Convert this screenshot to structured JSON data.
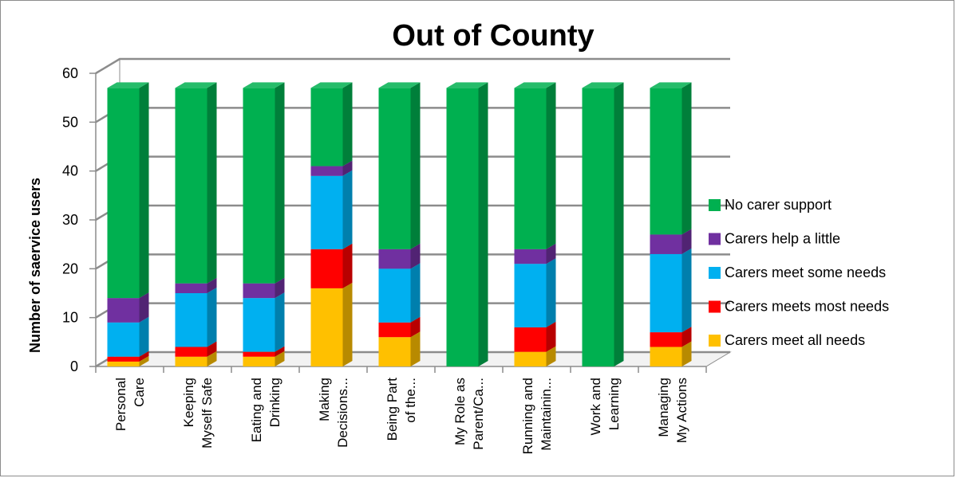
{
  "chart_data": {
    "type": "bar",
    "stacked": true,
    "three_d": true,
    "title": "Out of County",
    "ylabel": "Number of saervice users",
    "xlabel": "",
    "ylim": [
      0,
      60
    ],
    "yticks": [
      "0",
      "10",
      "20",
      "30",
      "40",
      "50",
      "60"
    ],
    "grid": true,
    "legend_position": "right",
    "categories": [
      [
        "Personal",
        "Care"
      ],
      [
        "Keeping",
        "Myself Safe"
      ],
      [
        "Eating and",
        "Drinking"
      ],
      [
        "Making",
        "Decisions..."
      ],
      [
        "Being Part",
        "of the..."
      ],
      [
        "My Role as",
        "Parent/Ca..."
      ],
      [
        "Running and",
        "Maintainin..."
      ],
      [
        "Work and",
        "Learning"
      ],
      [
        "Managing",
        "My Actions"
      ]
    ],
    "series": [
      {
        "name": "Carers meet all needs",
        "color": "#ffc000",
        "values": [
          1,
          2,
          2,
          16,
          6,
          0,
          3,
          0,
          4
        ]
      },
      {
        "name": "Carers meets most needs",
        "color": "#ff0000",
        "values": [
          1,
          2,
          1,
          8,
          3,
          0,
          5,
          0,
          3
        ]
      },
      {
        "name": "Carers meet some needs",
        "color": "#00b0f0",
        "values": [
          7,
          11,
          11,
          15,
          11,
          0,
          13,
          0,
          16
        ]
      },
      {
        "name": "Carers help a little",
        "color": "#7030a0",
        "values": [
          5,
          2,
          3,
          2,
          4,
          0,
          3,
          0,
          4
        ]
      },
      {
        "name": "No carer support",
        "color": "#00b050",
        "values": [
          43,
          40,
          40,
          16,
          33,
          57,
          33,
          57,
          30
        ]
      }
    ],
    "legend_order": [
      "No carer support",
      "Carers help a little",
      "Carers meet some needs",
      "Carers meets most needs",
      "Carers meet all needs"
    ]
  }
}
